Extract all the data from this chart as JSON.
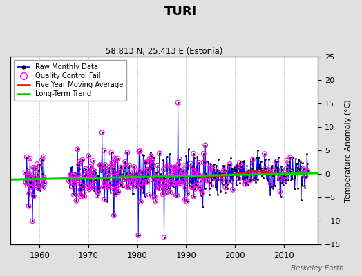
{
  "title": "TURI",
  "subtitle": "58.813 N, 25.413 E (Estonia)",
  "ylabel_right": "Temperature Anomaly (°C)",
  "watermark": "Berkeley Earth",
  "xlim": [
    1954,
    2017
  ],
  "ylim": [
    -15,
    25
  ],
  "yticks": [
    -15,
    -10,
    -5,
    0,
    5,
    10,
    15,
    20,
    25
  ],
  "xticks": [
    1960,
    1970,
    1980,
    1990,
    2000,
    2010
  ],
  "bg_color": "#e0e0e0",
  "plot_bg_color": "#ffffff",
  "raw_line_color": "#0000ff",
  "raw_dot_color": "#000000",
  "qc_fail_color": "#ff00ff",
  "moving_avg_color": "#ff0000",
  "trend_color": "#00cc00",
  "trend_start": 1954,
  "trend_end": 2017,
  "trend_slope": 0.022,
  "trend_at_1985": -0.5,
  "ma_start": 1993,
  "seed": 42
}
